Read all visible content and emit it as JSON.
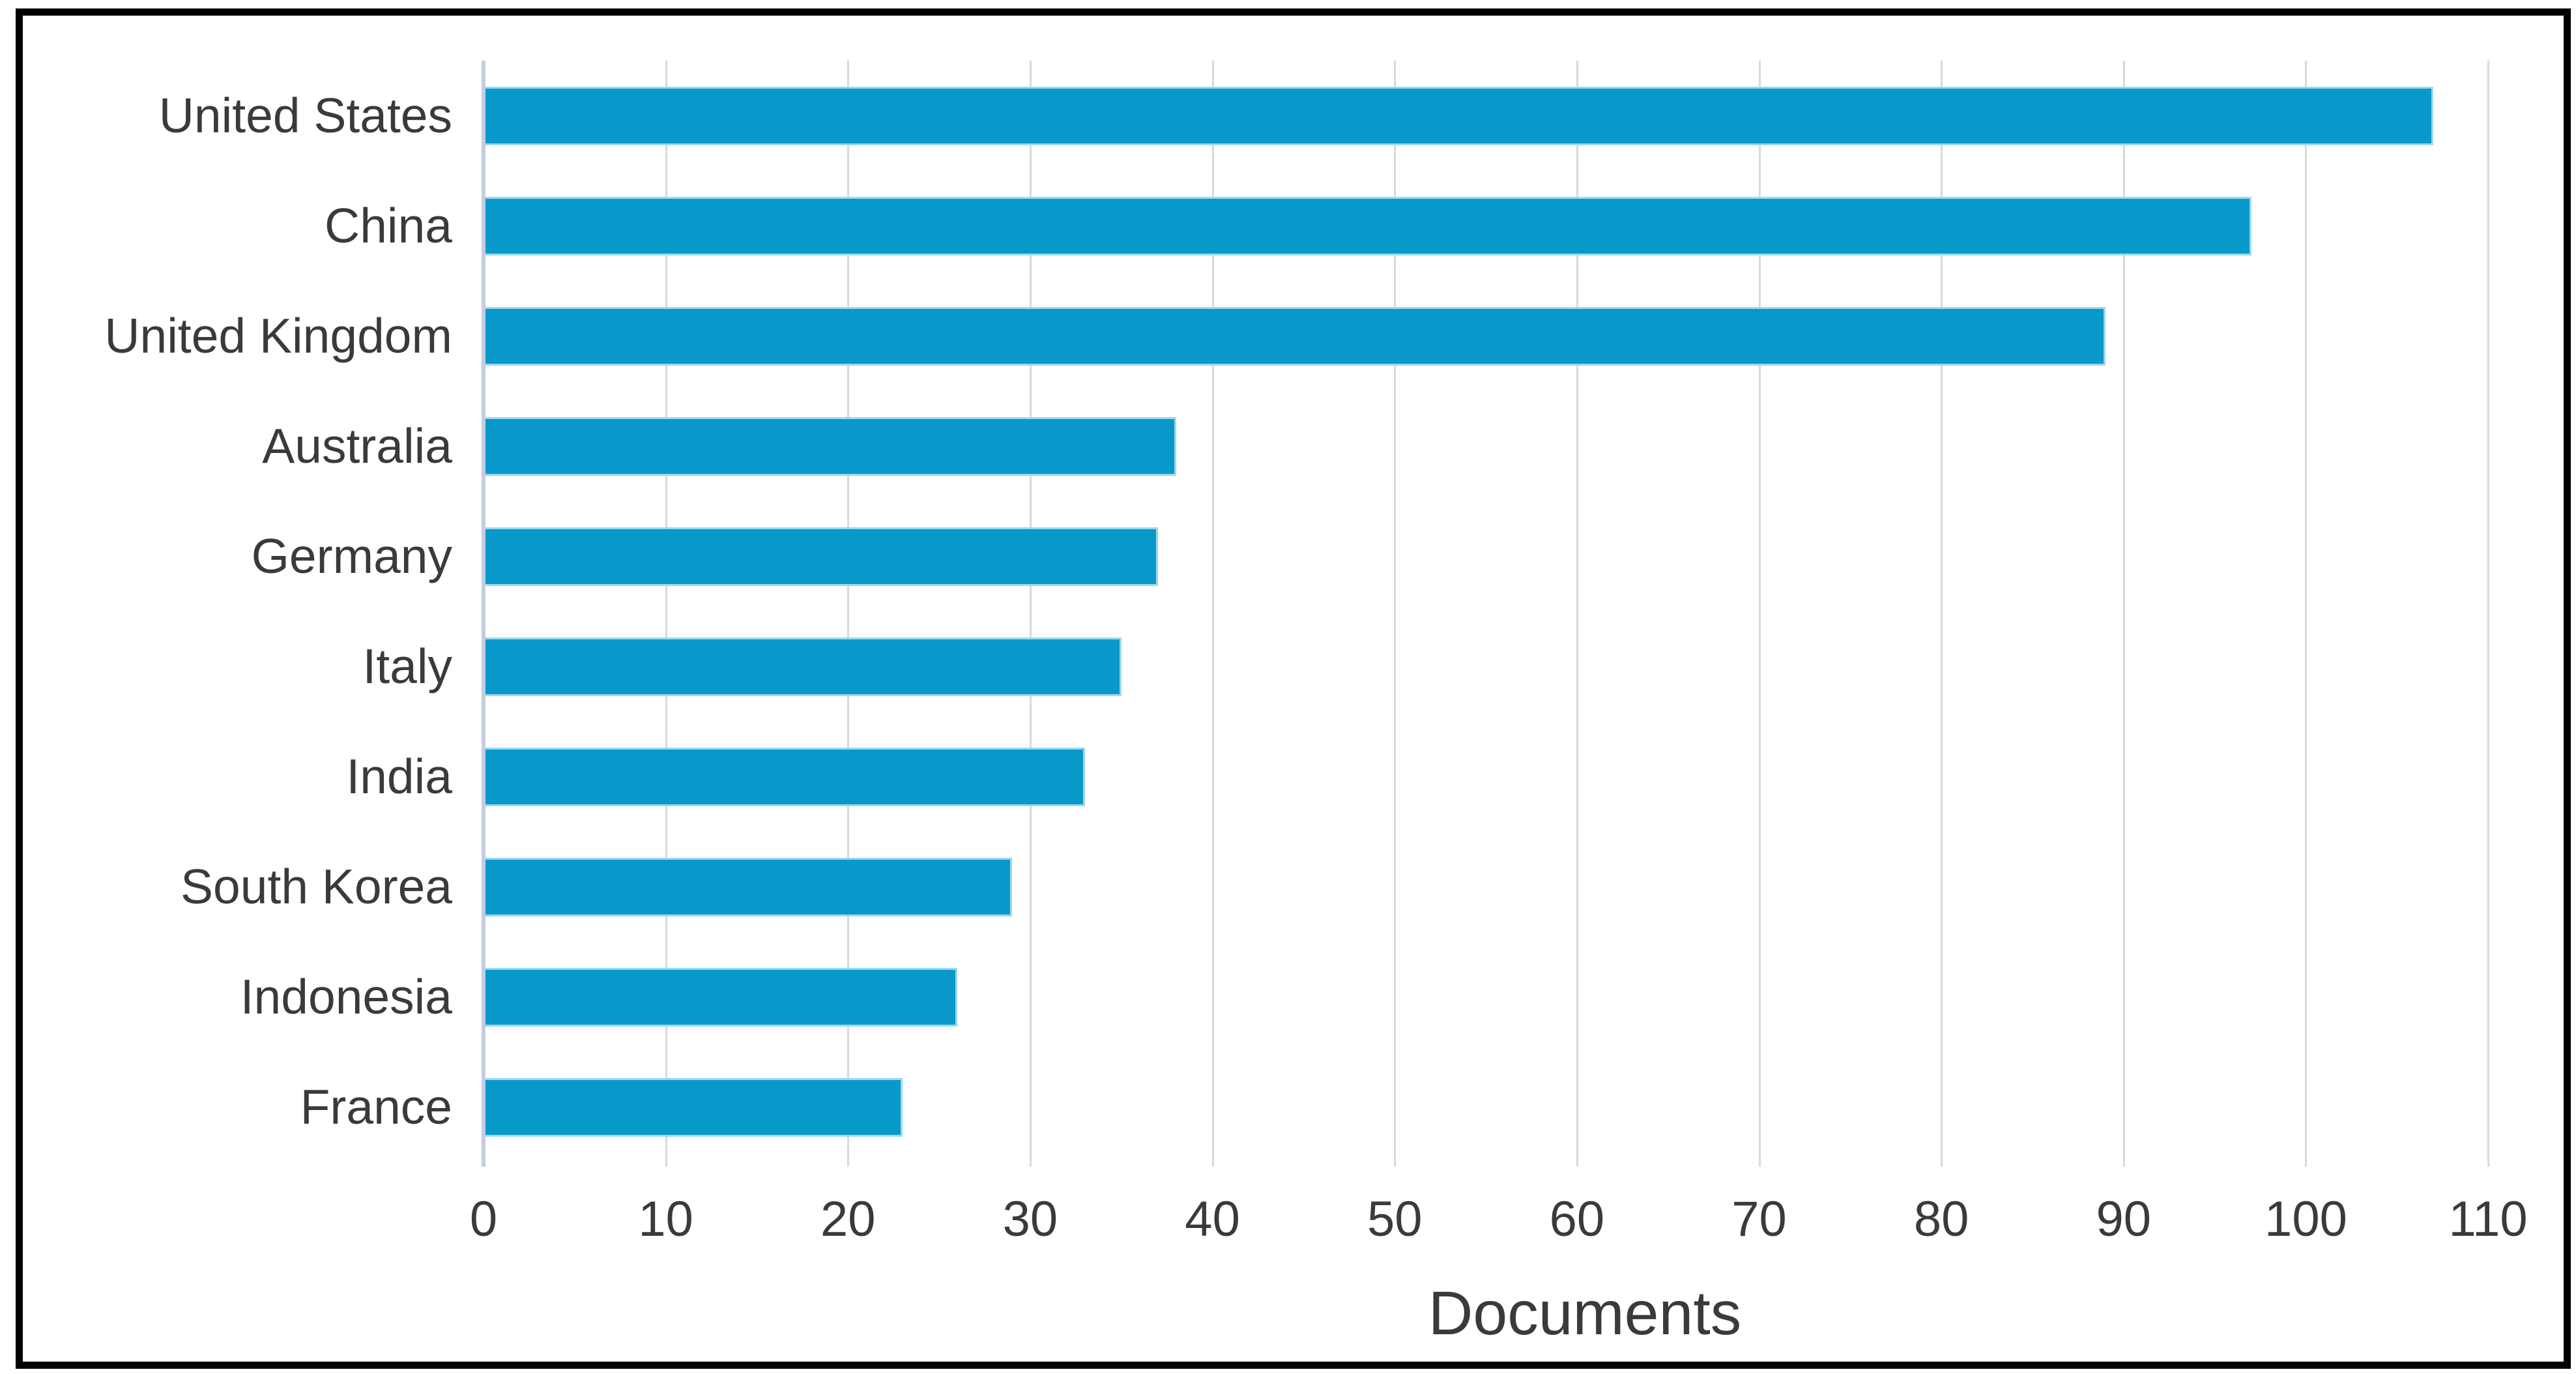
{
  "figure": {
    "background": "#ffffff",
    "frame_color": "#000000"
  },
  "chart_data": {
    "type": "bar",
    "orientation": "horizontal",
    "title": "",
    "xlabel": "Documents",
    "ylabel": "",
    "categories": [
      "United States",
      "China",
      "United Kingdom",
      "Australia",
      "Germany",
      "Italy",
      "India",
      "South Korea",
      "Indonesia",
      "France"
    ],
    "values": [
      107,
      97,
      89,
      38,
      37,
      35,
      33,
      29,
      26,
      23
    ],
    "xlim": [
      0,
      113
    ],
    "xticks": [
      0,
      10,
      20,
      30,
      40,
      50,
      60,
      70,
      80,
      90,
      100,
      110
    ],
    "grid": "vertical",
    "legend": "none",
    "bar_color": "#0899cb",
    "bar_edge_color": "#9ed8ee",
    "gridline_color": "#d9d9d9",
    "axis_line_color": "#c4cce0",
    "text_color": "#3a3a3a"
  }
}
